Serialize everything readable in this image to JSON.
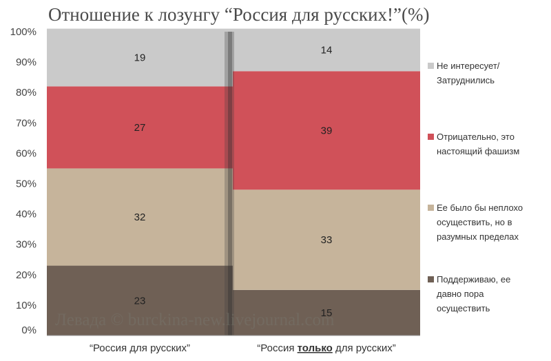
{
  "title": "Отношение к лозунгу “Россия для русских!”(%)",
  "watermark": "Левада © burckina-new.livejournal.com",
  "chart_data": {
    "type": "bar",
    "stacked": true,
    "percent": true,
    "ylim": [
      0,
      100
    ],
    "yticks": [
      "0%",
      "10%",
      "20%",
      "30%",
      "40%",
      "50%",
      "60%",
      "70%",
      "80%",
      "90%",
      "100%"
    ],
    "categories": [
      {
        "parts": [
          {
            "text": "“Россия для русских”",
            "bold": false
          }
        ]
      },
      {
        "parts": [
          {
            "text": "“Россия ",
            "bold": false
          },
          {
            "text": "только",
            "bold": true
          },
          {
            "text": " для русских”",
            "bold": false
          }
        ]
      }
    ],
    "series": [
      {
        "name": "Поддерживаю, ее давно пора осуществить",
        "legend_lines": [
          "Поддерживаю, ее",
          "давно пора",
          "осуществить"
        ],
        "color": "#6f6055",
        "values": [
          23,
          15
        ]
      },
      {
        "name": "Ее было бы неплохо осуществить, но в разумных пределах",
        "legend_lines": [
          "Ее было бы неплохо",
          "осуществить, но в",
          "разумных пределах"
        ],
        "color": "#c6b49b",
        "values": [
          32,
          33
        ]
      },
      {
        "name": "Отрицательно, это настоящий фашизм",
        "legend_lines": [
          "Отрицательно, это",
          "настоящий фашизм"
        ],
        "color": "#d05159",
        "values": [
          27,
          39
        ]
      },
      {
        "name": "Не интересует/ Затруднились",
        "legend_lines": [
          "Не интересует/",
          "Затруднились"
        ],
        "color": "#cacaca",
        "values": [
          19,
          14
        ]
      }
    ],
    "legend_position": "right",
    "grid": false
  }
}
